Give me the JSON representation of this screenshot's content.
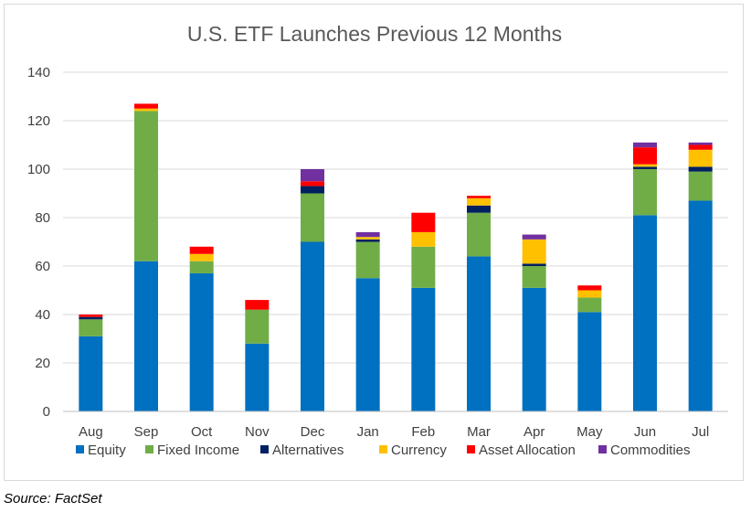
{
  "chart_data": {
    "type": "bar",
    "stacked": true,
    "title": "U.S. ETF Launches Previous 12 Months",
    "xlabel": "",
    "ylabel": "",
    "ylim": [
      0,
      140
    ],
    "yticks": [
      0,
      20,
      40,
      60,
      80,
      100,
      120,
      140
    ],
    "grid": true,
    "legend_position": "bottom",
    "categories": [
      "Aug",
      "Sep",
      "Oct",
      "Nov",
      "Dec",
      "Jan",
      "Feb",
      "Mar",
      "Apr",
      "May",
      "Jun",
      "Jul"
    ],
    "series": [
      {
        "name": "Equity",
        "color": "#0070c0",
        "values": [
          31,
          62,
          57,
          28,
          70,
          55,
          51,
          64,
          51,
          41,
          81,
          87
        ]
      },
      {
        "name": "Fixed Income",
        "color": "#70ad47",
        "values": [
          7,
          62,
          5,
          14,
          20,
          15,
          17,
          18,
          9,
          6,
          19,
          12
        ]
      },
      {
        "name": "Alternatives",
        "color": "#002060",
        "values": [
          1,
          0,
          0,
          0,
          3,
          1,
          0,
          3,
          1,
          0,
          1,
          2
        ]
      },
      {
        "name": "Currency",
        "color": "#ffc000",
        "values": [
          0,
          1,
          3,
          0,
          0,
          1,
          6,
          3,
          10,
          3,
          1,
          7
        ]
      },
      {
        "name": "Asset Allocation",
        "color": "#ff0000",
        "values": [
          1,
          2,
          3,
          4,
          2,
          0,
          8,
          1,
          0,
          2,
          7,
          2
        ]
      },
      {
        "name": "Commodities",
        "color": "#7030a0",
        "values": [
          0,
          0,
          0,
          0,
          5,
          2,
          0,
          0,
          2,
          0,
          2,
          1
        ]
      }
    ]
  },
  "footer": {
    "source": "Source: FactSet"
  }
}
